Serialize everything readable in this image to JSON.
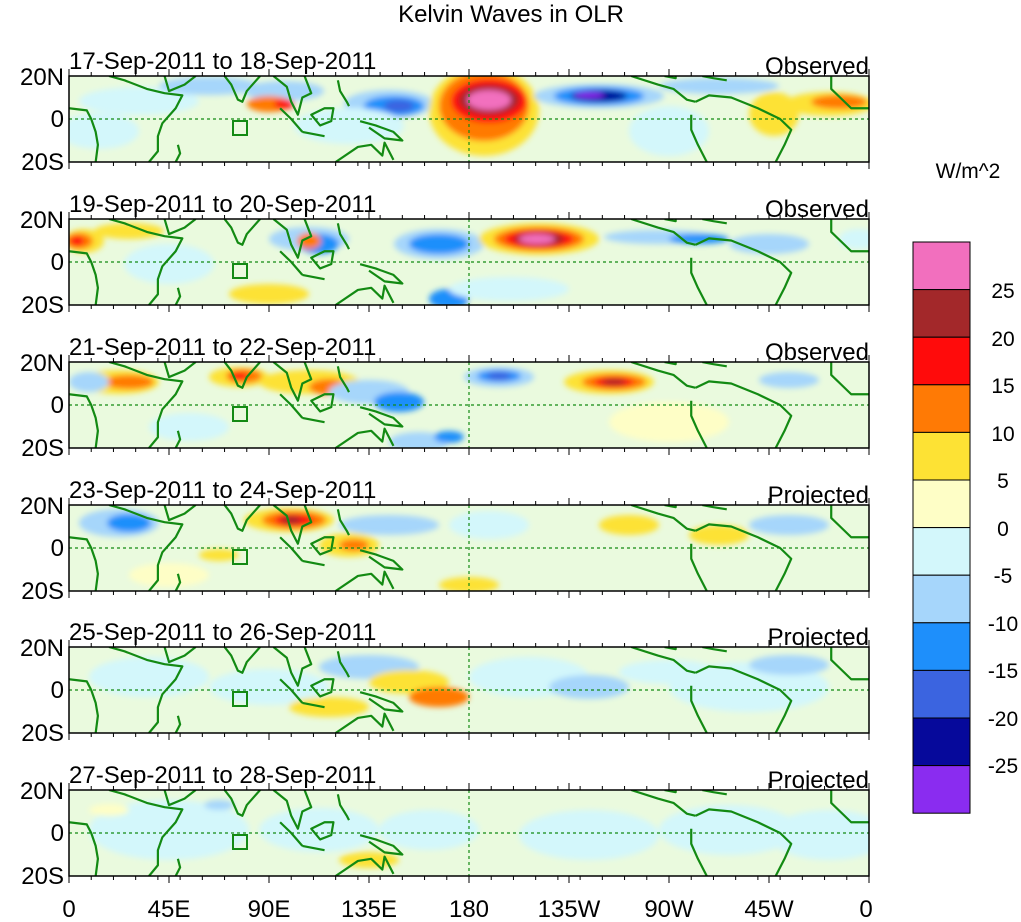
{
  "title": "Kelvin Waves in OLR",
  "colorbar": {
    "units_label": "W/m^2",
    "labels": [
      "25",
      "20",
      "15",
      "10",
      "5",
      "0",
      "-5",
      "-10",
      "-15",
      "-20",
      "-25"
    ],
    "colors": [
      "#f26fbe",
      "#a3282a",
      "#ff0b0b",
      "#ff7a05",
      "#fde234",
      "#fefec6",
      "#d3f7fb",
      "#a6d6fb",
      "#1e8ffb",
      "#3b64e0",
      "#06099b",
      "#8a2cf0"
    ]
  },
  "x_axis": {
    "tick_labels": [
      "0",
      "45E",
      "90E",
      "135E",
      "180",
      "135W",
      "90W",
      "45W",
      "0"
    ]
  },
  "y_axis": {
    "tick_labels": [
      "20N",
      "0",
      "20S"
    ]
  },
  "panels": [
    {
      "date_range": "17-Sep-2011 to 18-Sep-2011",
      "status": "Observed"
    },
    {
      "date_range": "19-Sep-2011 to 20-Sep-2011",
      "status": "Observed"
    },
    {
      "date_range": "21-Sep-2011 to 22-Sep-2011",
      "status": "Observed"
    },
    {
      "date_range": "23-Sep-2011 to 24-Sep-2011",
      "status": "Projected"
    },
    {
      "date_range": "25-Sep-2011 to 26-Sep-2011",
      "status": "Projected"
    },
    {
      "date_range": "27-Sep-2011 to 28-Sep-2011",
      "status": "Projected"
    }
  ]
}
